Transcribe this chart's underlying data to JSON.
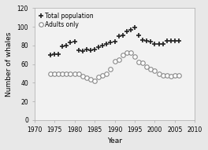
{
  "total_pop_years": [
    1974,
    1975,
    1976,
    1977,
    1978,
    1979,
    1980,
    1981,
    1982,
    1983,
    1984,
    1985,
    1986,
    1987,
    1988,
    1989,
    1990,
    1991,
    1992,
    1993,
    1994,
    1995,
    1996,
    1997,
    1998,
    1999,
    2000,
    2001,
    2002,
    2003,
    2004,
    2005,
    2006
  ],
  "total_pop_values": [
    70,
    71,
    71,
    79,
    80,
    83,
    84,
    75,
    74,
    76,
    75,
    76,
    78,
    80,
    82,
    83,
    84,
    90,
    91,
    95,
    97,
    99,
    91,
    86,
    85,
    84,
    82,
    82,
    82,
    85,
    85,
    85,
    85
  ],
  "adults_years": [
    1974,
    1975,
    1976,
    1977,
    1978,
    1979,
    1980,
    1981,
    1982,
    1983,
    1984,
    1985,
    1986,
    1987,
    1988,
    1989,
    1990,
    1991,
    1992,
    1993,
    1994,
    1995,
    1996,
    1997,
    1998,
    1999,
    2000,
    2001,
    2002,
    2003,
    2004,
    2005,
    2006
  ],
  "adults_values": [
    50,
    50,
    50,
    50,
    50,
    50,
    50,
    50,
    47,
    45,
    44,
    42,
    46,
    48,
    50,
    55,
    63,
    65,
    70,
    72,
    72,
    68,
    62,
    61,
    57,
    55,
    53,
    50,
    48,
    48,
    47,
    48,
    48
  ],
  "xlim": [
    1970,
    2010
  ],
  "ylim": [
    0,
    120
  ],
  "xticks": [
    1970,
    1975,
    1980,
    1985,
    1990,
    1995,
    2000,
    2005,
    2010
  ],
  "yticks": [
    0,
    20,
    40,
    60,
    80,
    100,
    120
  ],
  "xlabel": "Year",
  "ylabel": "Number of whales",
  "legend_total": "Total population",
  "legend_adults": "Adults only",
  "bg_color": "#e8e8e8",
  "plot_bg": "#f2f2f2",
  "marker_total_color": "#222222",
  "marker_adults_edge": "#888888"
}
